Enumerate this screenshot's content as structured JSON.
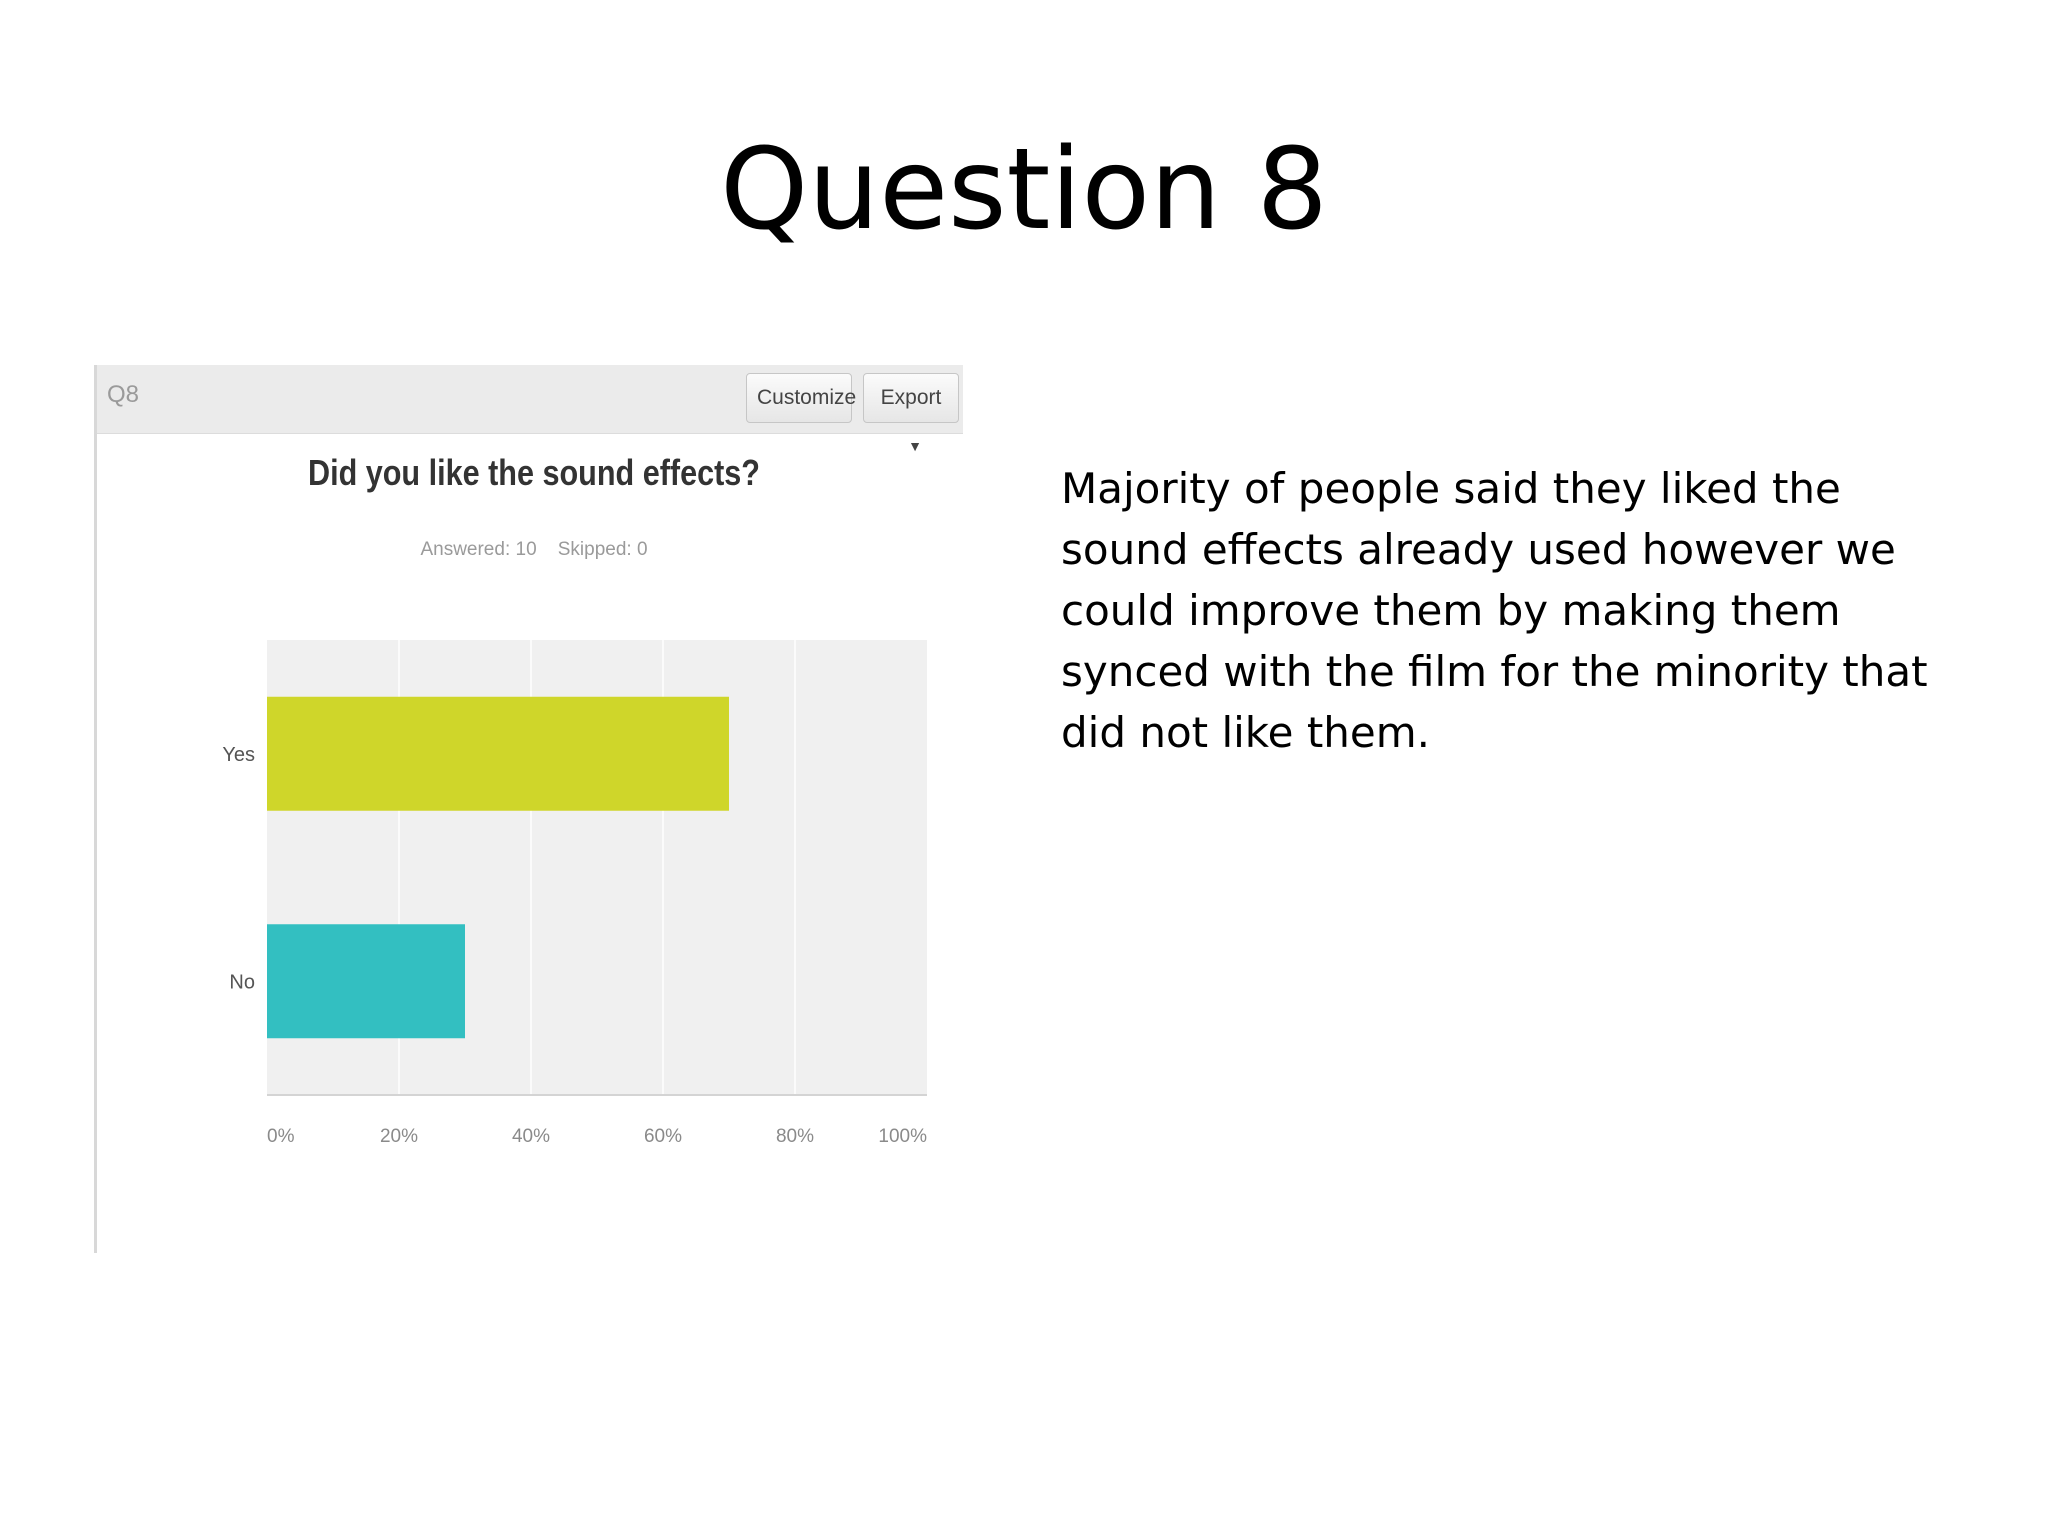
{
  "slide": {
    "title": "Question 8",
    "commentary": "Majority of people said they liked the sound effects already used however we could improve them by making them synced with the film for the minority that did not like them."
  },
  "panel": {
    "question_label": "Q8",
    "customize_label": "Customize",
    "export_label": "Export",
    "export_icon": "caret-down-icon"
  },
  "chart_data": {
    "type": "bar",
    "orientation": "horizontal",
    "title": "Did you like the sound effects?",
    "subtitle": "Answered: 10    Skipped: 0",
    "categories": [
      "Yes",
      "No"
    ],
    "values": [
      70,
      30
    ],
    "colors": [
      "#cfd62a",
      "#33bfc1"
    ],
    "xlim": [
      0,
      100
    ],
    "xticks": [
      "0%",
      "20%",
      "40%",
      "60%",
      "80%",
      "100%"
    ],
    "grid": true,
    "plot_background": "#f0f0f0"
  }
}
